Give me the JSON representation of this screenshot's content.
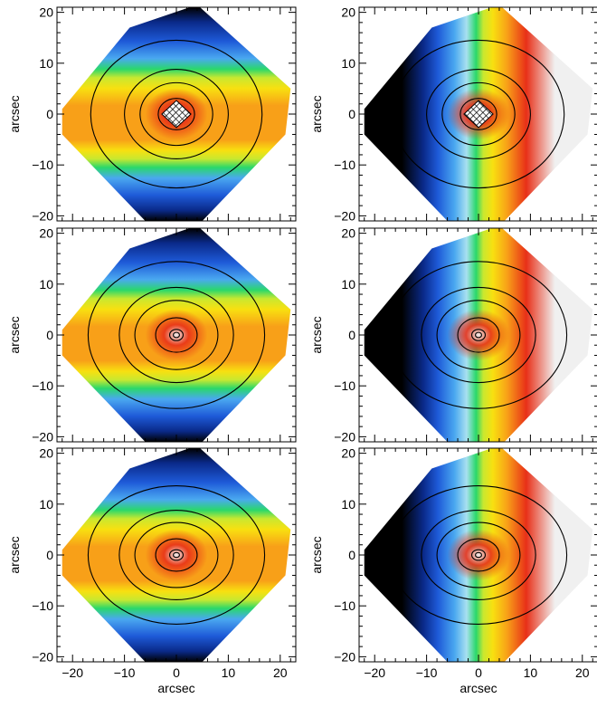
{
  "figure": {
    "xlabel": "arcsec",
    "ylabel": "arcsec"
  },
  "colormap": [
    "#000000",
    "#0a2a8a",
    "#1e5ad8",
    "#4aa8f0",
    "#a8e0f0",
    "#2ad86a",
    "#c8e830",
    "#f8e010",
    "#f8a018",
    "#e83018",
    "#f0f0f0"
  ],
  "contour_color": "#000000",
  "chart_data": [
    {
      "type": "heatmap",
      "row": 1,
      "column": 1,
      "quantity_kind": "symmetric",
      "title": "",
      "xlabel": "",
      "ylabel": "arcsec",
      "xlim": [
        -23,
        23
      ],
      "ylim": [
        -21,
        21
      ],
      "xticks": [
        -20,
        -10,
        0,
        10,
        20
      ],
      "yticks": [
        -20,
        -10,
        0,
        10,
        20
      ],
      "contour_radii": [
        3.5,
        7,
        10,
        16.5
      ],
      "contour_axis_ratio": 0.88,
      "hatched_center": true
    },
    {
      "type": "heatmap",
      "row": 1,
      "column": 2,
      "quantity_kind": "antisymmetric",
      "title": "",
      "xlabel": "",
      "ylabel": "arcsec",
      "xlim": [
        -23,
        23
      ],
      "ylim": [
        -21,
        21
      ],
      "xticks": [
        -20,
        -10,
        0,
        10,
        20
      ],
      "yticks": [
        -20,
        -10,
        0,
        10,
        20
      ],
      "contour_radii": [
        3.5,
        7,
        10,
        16.5
      ],
      "contour_axis_ratio": 0.88,
      "hatched_center": true
    },
    {
      "type": "heatmap",
      "row": 2,
      "column": 1,
      "quantity_kind": "symmetric",
      "title": "",
      "xlabel": "",
      "ylabel": "arcsec",
      "xlim": [
        -23,
        23
      ],
      "ylim": [
        -21,
        21
      ],
      "xticks": [
        -20,
        -10,
        0,
        10,
        20
      ],
      "yticks": [
        -20,
        -10,
        0,
        10,
        20
      ],
      "contour_radii": [
        0.6,
        1.3,
        4,
        8,
        11,
        17
      ],
      "contour_axis_ratio": 0.85,
      "hatched_center": false
    },
    {
      "type": "heatmap",
      "row": 2,
      "column": 2,
      "quantity_kind": "antisymmetric",
      "title": "",
      "xlabel": "",
      "ylabel": "arcsec",
      "xlim": [
        -23,
        23
      ],
      "ylim": [
        -21,
        21
      ],
      "xticks": [
        -20,
        -10,
        0,
        10,
        20
      ],
      "yticks": [
        -20,
        -10,
        0,
        10,
        20
      ],
      "contour_radii": [
        0.6,
        1.3,
        4,
        8,
        11,
        17
      ],
      "contour_axis_ratio": 0.85,
      "hatched_center": false
    },
    {
      "type": "heatmap",
      "row": 3,
      "column": 1,
      "quantity_kind": "symmetric",
      "title": "",
      "xlabel": "arcsec",
      "ylabel": "arcsec",
      "xlim": [
        -23,
        23
      ],
      "ylim": [
        -21,
        21
      ],
      "xticks": [
        -20,
        -10,
        0,
        10,
        20
      ],
      "yticks": [
        -20,
        -10,
        0,
        10,
        20
      ],
      "contour_radii": [
        0.6,
        1.3,
        4,
        8,
        11,
        17
      ],
      "contour_axis_ratio": 0.8,
      "hatched_center": false
    },
    {
      "type": "heatmap",
      "row": 3,
      "column": 2,
      "quantity_kind": "antisymmetric",
      "title": "",
      "xlabel": "arcsec",
      "ylabel": "arcsec",
      "xlim": [
        -23,
        23
      ],
      "ylim": [
        -21,
        21
      ],
      "xticks": [
        -20,
        -10,
        0,
        10,
        20
      ],
      "yticks": [
        -20,
        -10,
        0,
        10,
        20
      ],
      "contour_radii": [
        0.6,
        1.3,
        4,
        8,
        11,
        17
      ],
      "contour_axis_ratio": 0.8,
      "hatched_center": false
    }
  ]
}
